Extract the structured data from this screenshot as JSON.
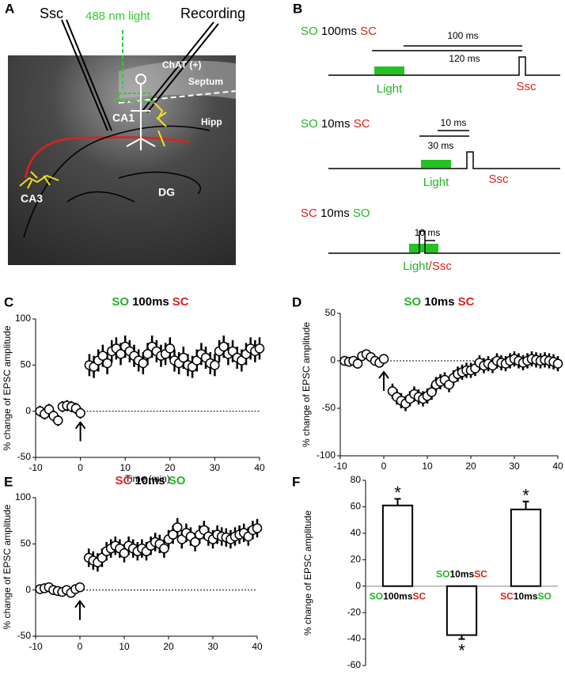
{
  "panel_a": {
    "label": "A",
    "stim": "Ssc",
    "recording": "Recording",
    "light": "488 nm light",
    "chat": "ChAT (+)",
    "septum": "Septum",
    "hipp": "Hipp",
    "ca1": "CA1",
    "ca3": "CA3",
    "dg": "DG"
  },
  "panel_b": {
    "label": "B",
    "diagrams": [
      {
        "title": [
          {
            "text": "SO",
            "color": "#22b522"
          },
          {
            "text": "100ms",
            "color": "#000000"
          },
          {
            "text": "SC",
            "color": "#e0201b"
          }
        ],
        "intervals": [
          "100 ms",
          "120 ms"
        ],
        "light": "Light",
        "stim": "Ssc"
      },
      {
        "title": [
          {
            "text": "SO",
            "color": "#22b522"
          },
          {
            "text": "10ms",
            "color": "#000000"
          },
          {
            "text": "SC",
            "color": "#e0201b"
          }
        ],
        "intervals": [
          "10 ms",
          "30 ms"
        ],
        "light": "Light",
        "stim": "Ssc"
      },
      {
        "title": [
          {
            "text": "SC",
            "color": "#e0201b"
          },
          {
            "text": "10ms",
            "color": "#000000"
          },
          {
            "text": "SO",
            "color": "#22b522"
          }
        ],
        "intervals": [
          "10 ms"
        ],
        "light": "Light",
        "stim": "/Ssc"
      }
    ]
  },
  "chart_data": [
    {
      "type": "scatter",
      "panel": "C",
      "title": [
        {
          "text": "SO",
          "color": "#22b522"
        },
        {
          "text": "100ms",
          "color": "#000000"
        },
        {
          "text": "SC",
          "color": "#e0201b"
        }
      ],
      "ylabel": "% change of EPSC amplitude",
      "xlabel": "Time (min)",
      "x": [
        -9,
        -8,
        -7,
        -6,
        -5,
        -4,
        -3,
        -2,
        -1,
        0,
        2,
        3,
        4,
        5,
        6,
        7,
        8,
        9,
        10,
        11,
        12,
        13,
        14,
        15,
        16,
        17,
        18,
        19,
        20,
        21,
        22,
        23,
        24,
        25,
        26,
        27,
        28,
        29,
        30,
        31,
        32,
        33,
        34,
        35,
        36,
        37,
        38,
        39,
        40
      ],
      "values": [
        0,
        -3,
        2,
        -5,
        -10,
        5,
        6,
        5,
        3,
        -2,
        50,
        48,
        55,
        60,
        52,
        65,
        68,
        62,
        70,
        65,
        60,
        55,
        52,
        62,
        70,
        65,
        60,
        62,
        68,
        55,
        52,
        58,
        50,
        48,
        55,
        62,
        58,
        52,
        50,
        65,
        70,
        62,
        65,
        58,
        55,
        62,
        68,
        65,
        68
      ],
      "errors": [
        6,
        6,
        6,
        6,
        6,
        6,
        6,
        6,
        6,
        6,
        12,
        12,
        12,
        12,
        12,
        12,
        12,
        12,
        12,
        12,
        12,
        12,
        12,
        12,
        12,
        12,
        12,
        12,
        12,
        12,
        12,
        12,
        12,
        12,
        12,
        12,
        12,
        12,
        12,
        12,
        12,
        12,
        12,
        12,
        12,
        12,
        12,
        12,
        12
      ],
      "xlim": [
        -10,
        40
      ],
      "xticks": [
        -10,
        0,
        10,
        20,
        30,
        40
      ],
      "ylim": [
        -50,
        100
      ],
      "yticks": [
        -50,
        0,
        50,
        100
      ],
      "ref_line": 0,
      "arrow_x": 0
    },
    {
      "type": "scatter",
      "panel": "D",
      "title": [
        {
          "text": "SO",
          "color": "#22b522"
        },
        {
          "text": "10ms",
          "color": "#000000"
        },
        {
          "text": "SC",
          "color": "#e0201b"
        }
      ],
      "ylabel": "% change of EPSC amplitude",
      "x": [
        -9,
        -8,
        -7,
        -6,
        -5,
        -4,
        -3,
        -2,
        -1,
        0,
        2,
        3,
        4,
        5,
        6,
        7,
        8,
        9,
        10,
        11,
        12,
        13,
        14,
        15,
        16,
        17,
        18,
        19,
        20,
        21,
        22,
        23,
        24,
        25,
        26,
        27,
        28,
        29,
        30,
        31,
        32,
        33,
        34,
        35,
        36,
        37,
        38,
        39,
        40
      ],
      "values": [
        0,
        -1,
        0,
        -3,
        5,
        7,
        4,
        0,
        -2,
        2,
        -32,
        -38,
        -42,
        -45,
        -40,
        -35,
        -38,
        -40,
        -37,
        -33,
        -25,
        -22,
        -20,
        -25,
        -18,
        -14,
        -12,
        -10,
        -10,
        -8,
        -2,
        -5,
        -3,
        -5,
        0,
        -2,
        -3,
        0,
        2,
        0,
        -2,
        0,
        2,
        1,
        0,
        1,
        0,
        -1,
        -3
      ],
      "errors": [
        5,
        5,
        5,
        5,
        5,
        5,
        5,
        5,
        5,
        5,
        8,
        8,
        8,
        8,
        8,
        8,
        8,
        8,
        8,
        8,
        8,
        8,
        8,
        8,
        8,
        8,
        8,
        8,
        8,
        8,
        8,
        8,
        8,
        8,
        8,
        8,
        8,
        8,
        8,
        8,
        8,
        8,
        8,
        8,
        8,
        8,
        8,
        8,
        8
      ],
      "xlim": [
        -10,
        40
      ],
      "xticks": [
        -10,
        0,
        10,
        20,
        30,
        40
      ],
      "ylim": [
        -100,
        50
      ],
      "yticks": [
        -100,
        -50,
        0,
        50
      ],
      "ref_line": 0,
      "arrow_x": 0
    },
    {
      "type": "scatter",
      "panel": "E",
      "title": [
        {
          "text": "SC",
          "color": "#e0201b"
        },
        {
          "text": "10ms",
          "color": "#000000"
        },
        {
          "text": "SO",
          "color": "#22b522"
        }
      ],
      "ylabel": "% change of EPSC amplitude",
      "x": [
        -9,
        -8,
        -7,
        -6,
        -5,
        -4,
        -3,
        -2,
        -1,
        0,
        2,
        3,
        4,
        5,
        6,
        7,
        8,
        9,
        10,
        11,
        12,
        13,
        14,
        15,
        16,
        17,
        18,
        19,
        20,
        21,
        22,
        23,
        24,
        25,
        26,
        27,
        28,
        29,
        30,
        31,
        32,
        33,
        34,
        35,
        36,
        37,
        38,
        39,
        40
      ],
      "values": [
        1,
        2,
        3,
        0,
        -1,
        -2,
        0,
        -3,
        1,
        3,
        35,
        32,
        30,
        35,
        42,
        45,
        48,
        45,
        40,
        48,
        45,
        42,
        45,
        42,
        48,
        52,
        50,
        45,
        55,
        60,
        68,
        55,
        62,
        58,
        52,
        60,
        65,
        58,
        55,
        60,
        58,
        57,
        55,
        58,
        60,
        62,
        58,
        65,
        67
      ],
      "errors": [
        4,
        4,
        4,
        4,
        4,
        4,
        4,
        4,
        4,
        4,
        10,
        10,
        10,
        10,
        10,
        10,
        10,
        10,
        10,
        10,
        10,
        10,
        10,
        10,
        10,
        10,
        10,
        10,
        10,
        10,
        10,
        10,
        10,
        10,
        10,
        10,
        10,
        10,
        10,
        10,
        10,
        10,
        10,
        10,
        10,
        10,
        10,
        10,
        10
      ],
      "xlim": [
        -10,
        40
      ],
      "xticks": [
        -10,
        0,
        10,
        20,
        30,
        40
      ],
      "ylim": [
        -50,
        100
      ],
      "yticks": [
        -50,
        0,
        50,
        100
      ],
      "ref_line": 0,
      "arrow_x": 0
    },
    {
      "type": "bar",
      "panel": "F",
      "ylabel": "% change of EPSC amplitude",
      "categories": [
        [
          {
            "text": "SO",
            "color": "#22b522"
          },
          {
            "text": "100ms",
            "color": "#000000"
          },
          {
            "text": "SC",
            "color": "#e0201b"
          }
        ],
        [
          {
            "text": "SO",
            "color": "#22b522"
          },
          {
            "text": "10ms",
            "color": "#000000"
          },
          {
            "text": "SC",
            "color": "#e0201b"
          }
        ],
        [
          {
            "text": "SC",
            "color": "#e0201b"
          },
          {
            "text": "10ms",
            "color": "#000000"
          },
          {
            "text": "SO",
            "color": "#22b522"
          }
        ]
      ],
      "values": [
        61,
        -37,
        58
      ],
      "errors": [
        5,
        3,
        6
      ],
      "annotations": [
        "*",
        "*",
        "*"
      ],
      "ylim": [
        -60,
        80
      ],
      "yticks": [
        -60,
        -40,
        -20,
        0,
        20,
        40,
        60,
        80
      ]
    }
  ]
}
